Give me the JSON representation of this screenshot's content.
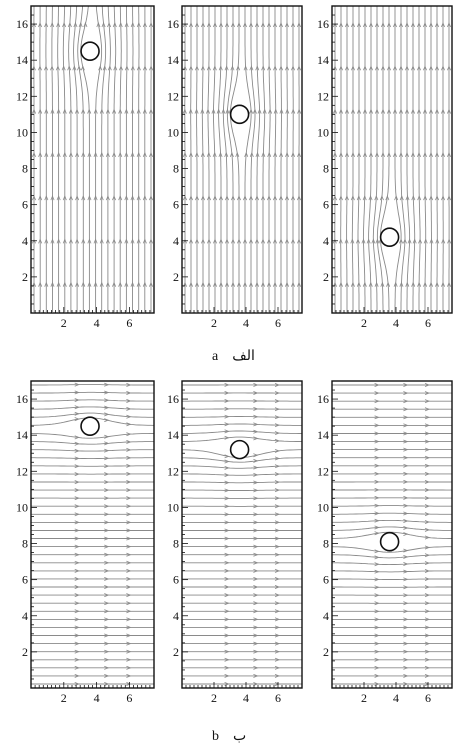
{
  "figure": {
    "caption_a_arabic": "الف",
    "caption_a_latin": "a",
    "caption_b_arabic": "ب",
    "caption_b_latin": "b"
  },
  "axes": {
    "x_ticks": [
      "2",
      "4",
      "6"
    ],
    "y_ticks": [
      "2",
      "4",
      "6",
      "8",
      "10",
      "12",
      "14",
      "16"
    ],
    "x_range": [
      0,
      7.5
    ],
    "y_range": [
      0,
      17
    ]
  },
  "chart_data": [
    {
      "type": "streamline",
      "row": "a",
      "flow_direction": "vertical",
      "cylinder_center": [
        3.6,
        14.5
      ]
    },
    {
      "type": "streamline",
      "row": "a",
      "flow_direction": "vertical",
      "cylinder_center": [
        3.6,
        11.0
      ]
    },
    {
      "type": "streamline",
      "row": "a",
      "flow_direction": "vertical",
      "cylinder_center": [
        3.6,
        4.2
      ]
    },
    {
      "type": "streamline",
      "row": "b",
      "flow_direction": "horizontal",
      "cylinder_center": [
        3.6,
        14.5
      ]
    },
    {
      "type": "streamline",
      "row": "b",
      "flow_direction": "horizontal",
      "cylinder_center": [
        3.6,
        13.2
      ]
    },
    {
      "type": "streamline",
      "row": "b",
      "flow_direction": "horizontal",
      "cylinder_center": [
        3.6,
        8.1
      ]
    }
  ],
  "colors": {
    "streamline": "#8a8a8a",
    "frame": "#111111",
    "cylinder": "#111111"
  }
}
